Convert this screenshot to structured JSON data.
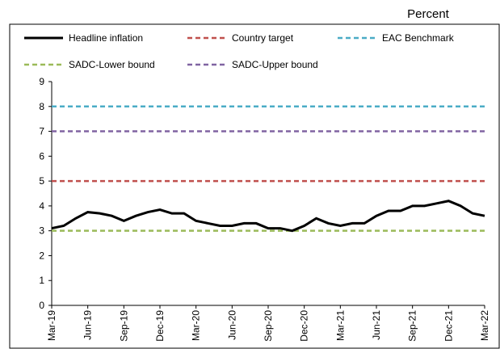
{
  "chart_data": {
    "type": "line",
    "unit_label": "Percent",
    "categories": [
      "Mar-19",
      null,
      null,
      "Jun-19",
      null,
      null,
      "Sep-19",
      null,
      null,
      "Dec-19",
      null,
      null,
      "Mar-20",
      null,
      null,
      "Jun-20",
      null,
      null,
      "Sep-20",
      null,
      null,
      "Dec-20",
      null,
      null,
      "Mar-21",
      null,
      null,
      "Jun-21",
      null,
      null,
      "Sep-21",
      null,
      null,
      "Dec-21",
      null,
      null,
      "Mar-22"
    ],
    "series": [
      {
        "name": "Headline inflation",
        "color": "#000000",
        "dashed": false,
        "values": [
          3.1,
          3.2,
          3.5,
          3.75,
          3.7,
          3.6,
          3.4,
          3.6,
          3.75,
          3.85,
          3.7,
          3.7,
          3.4,
          3.3,
          3.2,
          3.2,
          3.3,
          3.3,
          3.1,
          3.1,
          3.0,
          3.2,
          3.5,
          3.3,
          3.2,
          3.3,
          3.3,
          3.6,
          3.8,
          3.8,
          4.0,
          4.0,
          4.1,
          4.2,
          4.0,
          3.7,
          3.6
        ]
      },
      {
        "name": "Country target",
        "color": "#c0504d",
        "dashed": true,
        "values": [
          5,
          5,
          5,
          5,
          5,
          5,
          5,
          5,
          5,
          5,
          5,
          5,
          5,
          5,
          5,
          5,
          5,
          5,
          5,
          5,
          5,
          5,
          5,
          5,
          5,
          5,
          5,
          5,
          5,
          5,
          5,
          5,
          5,
          5,
          5,
          5,
          5
        ]
      },
      {
        "name": "EAC Benchmark",
        "color": "#4bacc6",
        "dashed": true,
        "values": [
          8,
          8,
          8,
          8,
          8,
          8,
          8,
          8,
          8,
          8,
          8,
          8,
          8,
          8,
          8,
          8,
          8,
          8,
          8,
          8,
          8,
          8,
          8,
          8,
          8,
          8,
          8,
          8,
          8,
          8,
          8,
          8,
          8,
          8,
          8,
          8,
          8
        ]
      },
      {
        "name": "SADC-Lower bound",
        "color": "#9bbb59",
        "dashed": true,
        "values": [
          3,
          3,
          3,
          3,
          3,
          3,
          3,
          3,
          3,
          3,
          3,
          3,
          3,
          3,
          3,
          3,
          3,
          3,
          3,
          3,
          3,
          3,
          3,
          3,
          3,
          3,
          3,
          3,
          3,
          3,
          3,
          3,
          3,
          3,
          3,
          3,
          3
        ]
      },
      {
        "name": "SADC-Upper bound",
        "color": "#8064a2",
        "dashed": true,
        "values": [
          7,
          7,
          7,
          7,
          7,
          7,
          7,
          7,
          7,
          7,
          7,
          7,
          7,
          7,
          7,
          7,
          7,
          7,
          7,
          7,
          7,
          7,
          7,
          7,
          7,
          7,
          7,
          7,
          7,
          7,
          7,
          7,
          7,
          7,
          7,
          7,
          7
        ]
      }
    ],
    "ylim": [
      0,
      9
    ],
    "yticks": [
      0,
      1,
      2,
      3,
      4,
      5,
      6,
      7,
      8,
      9
    ],
    "grid": false
  }
}
